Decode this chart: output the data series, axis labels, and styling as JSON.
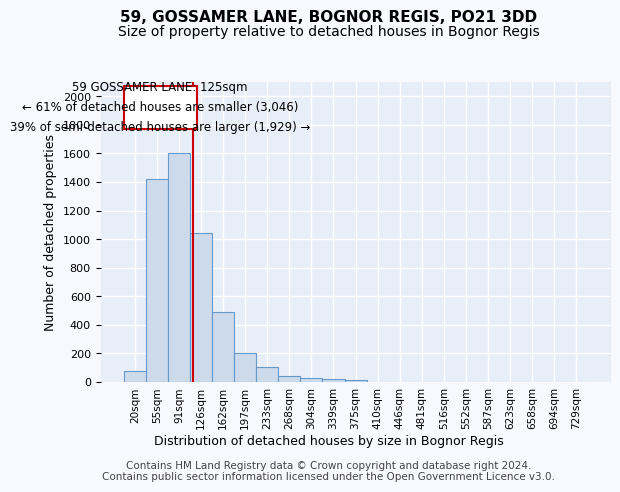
{
  "title_line1": "59, GOSSAMER LANE, BOGNOR REGIS, PO21 3DD",
  "title_line2": "Size of property relative to detached houses in Bognor Regis",
  "xlabel": "Distribution of detached houses by size in Bognor Regis",
  "ylabel": "Number of detached properties",
  "bar_values": [
    80,
    1420,
    1600,
    1040,
    490,
    200,
    105,
    40,
    25,
    20,
    15,
    0,
    0,
    0,
    0,
    0,
    0,
    0,
    0,
    0,
    0
  ],
  "bar_labels": [
    "20sqm",
    "55sqm",
    "91sqm",
    "126sqm",
    "162sqm",
    "197sqm",
    "233sqm",
    "268sqm",
    "304sqm",
    "339sqm",
    "375sqm",
    "410sqm",
    "446sqm",
    "481sqm",
    "516sqm",
    "552sqm",
    "587sqm",
    "623sqm",
    "658sqm",
    "694sqm",
    "729sqm"
  ],
  "bar_color": "#ccdaeb",
  "bar_edge_color": "#6699cc",
  "background_color": "#e8eef8",
  "grid_color": "#ffffff",
  "annotation_text": "59 GOSSAMER LANE: 125sqm\n← 61% of detached houses are smaller (3,046)\n39% of semi-detached houses are larger (1,929) →",
  "annotation_box_color": "#ffffff",
  "annotation_box_edge": "#cc0000",
  "vline_x": 2.65,
  "vline_color": "#cc0000",
  "ylim": [
    0,
    2100
  ],
  "yticks": [
    0,
    200,
    400,
    600,
    800,
    1000,
    1200,
    1400,
    1600,
    1800,
    2000
  ],
  "footnote": "Contains HM Land Registry data © Crown copyright and database right 2024.\nContains public sector information licensed under the Open Government Licence v3.0.",
  "title_fontsize": 11,
  "subtitle_fontsize": 10,
  "annotation_fontsize": 8.5,
  "footnote_fontsize": 7.5
}
